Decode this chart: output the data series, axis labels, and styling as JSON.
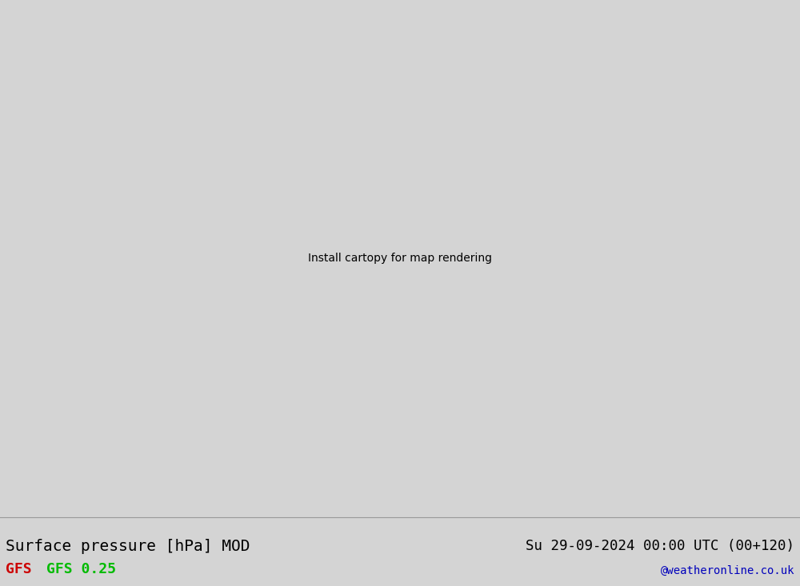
{
  "title_left": "Surface pressure [hPa] MOD",
  "title_right": "Su 29-09-2024 00:00 UTC (00+120)",
  "label_gfs1": "GFS",
  "label_gfs2": "GFS 0.25",
  "watermark": "@weatheronline.co.uk",
  "sea_color": "#e2e2e2",
  "land_color": "#c8f0a0",
  "land_border_color": "#aaaaaa",
  "footer_bg": "#d4d4d4",
  "green": "#00aa00",
  "red": "#cc0000",
  "gfs1_color": "#cc0000",
  "gfs2_color": "#00bb00",
  "watermark_color": "#0000bb",
  "figsize": [
    10.0,
    7.33
  ],
  "dpi": 100,
  "map_extent": [
    -45,
    55,
    27,
    73
  ],
  "contour_lw": 1.4,
  "label_fontsize": 8.5,
  "footer_title_size": 14,
  "footer_date_size": 12.5,
  "footer_gfs_size": 13
}
